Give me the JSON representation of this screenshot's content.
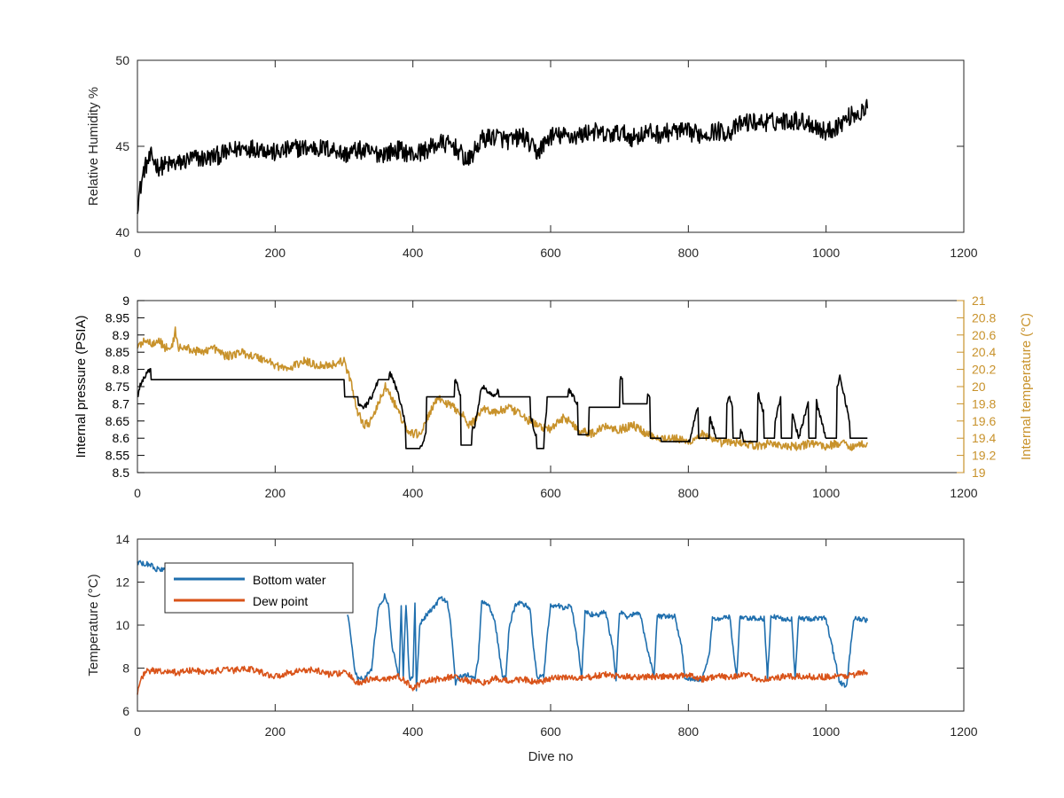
{
  "figure": {
    "xlabel": "Dive no"
  },
  "chart_data": [
    {
      "type": "line",
      "id": "humidity",
      "xlim": [
        0,
        1200
      ],
      "xticks": [
        0,
        200,
        400,
        600,
        800,
        1000,
        1200
      ],
      "ylim": [
        40,
        50
      ],
      "yticks": [
        40,
        45,
        50
      ],
      "ylabel": "Relative Humidity %",
      "grid": false,
      "series": [
        {
          "color": "#000000",
          "noise": 0.55,
          "x": [
            0,
            3,
            10,
            20,
            30,
            40,
            60,
            80,
            100,
            120,
            150,
            180,
            200,
            230,
            260,
            290,
            300,
            320,
            340,
            360,
            380,
            400,
            420,
            440,
            460,
            480,
            500,
            520,
            540,
            560,
            580,
            600,
            620,
            640,
            660,
            680,
            700,
            720,
            740,
            760,
            780,
            800,
            820,
            840,
            860,
            880,
            900,
            920,
            940,
            960,
            980,
            1000,
            1020,
            1040,
            1050,
            1060
          ],
          "values": [
            41.6,
            42.3,
            43.7,
            44.4,
            43.8,
            43.9,
            44.0,
            44.3,
            44.3,
            44.5,
            44.9,
            44.9,
            44.6,
            44.9,
            44.9,
            44.8,
            44.5,
            44.8,
            44.6,
            44.6,
            44.8,
            44.5,
            44.8,
            45.2,
            45.0,
            44.1,
            45.4,
            45.6,
            45.3,
            45.6,
            44.6,
            45.6,
            45.6,
            45.6,
            45.9,
            45.6,
            45.8,
            45.5,
            45.8,
            45.7,
            45.9,
            45.8,
            45.7,
            45.9,
            45.8,
            46.4,
            46.4,
            46.4,
            46.5,
            46.5,
            46.3,
            45.8,
            46.3,
            46.9,
            46.9,
            47.2
          ]
        }
      ]
    },
    {
      "type": "line",
      "id": "pressure",
      "xlim": [
        0,
        1200
      ],
      "xticks": [
        0,
        200,
        400,
        600,
        800,
        1000,
        1200
      ],
      "ylim": [
        8.5,
        9
      ],
      "yticks": [
        8.5,
        8.55,
        8.6,
        8.65,
        8.7,
        8.75,
        8.8,
        8.85,
        8.9,
        8.95,
        9
      ],
      "ylabel": "Internal pressure (PSIA)",
      "y2lim": [
        19,
        21
      ],
      "y2ticks": [
        19,
        19.2,
        19.4,
        19.6,
        19.8,
        20,
        20.2,
        20.4,
        20.6,
        20.8,
        21
      ],
      "y2label": "Internal temperature (°C)",
      "grid": false,
      "series": [
        {
          "axis": "left",
          "color": "#000000",
          "noise": 0.008,
          "x": [
            0,
            5,
            10,
            15,
            20,
            50,
            100,
            150,
            200,
            250,
            290,
            300,
            310,
            320,
            330,
            340,
            350,
            360,
            370,
            380,
            390,
            400,
            410,
            420,
            430,
            440,
            450,
            460,
            470,
            480,
            490,
            500,
            520,
            530,
            540,
            560,
            580,
            590,
            600,
            620,
            640,
            660,
            680,
            700,
            720,
            740,
            760,
            780,
            800,
            820,
            840,
            860,
            880,
            900,
            920,
            940,
            960,
            980,
            1000,
            1020,
            1040,
            1060
          ],
          "values": [
            8.72,
            8.76,
            8.78,
            8.79,
            8.8,
            8.8,
            8.8,
            8.8,
            8.8,
            8.8,
            8.8,
            8.79,
            8.74,
            8.7,
            8.69,
            8.72,
            8.77,
            8.8,
            8.78,
            8.72,
            8.64,
            8.6,
            8.57,
            8.62,
            8.76,
            8.79,
            8.79,
            8.78,
            8.72,
            8.6,
            8.64,
            8.75,
            8.72,
            8.78,
            8.78,
            8.74,
            8.6,
            8.6,
            8.78,
            8.76,
            8.7,
            8.77,
            8.7,
            8.78,
            8.72,
            8.74,
            8.6,
            8.64,
            8.58,
            8.74,
            8.6,
            8.72,
            8.6,
            8.74,
            8.6,
            8.77,
            8.6,
            8.75,
            8.6,
            8.78,
            8.6,
            8.6
          ],
          "oscillation": [
            [
              20,
              300,
              8.77,
              8.81
            ],
            [
              300,
              320,
              8.72,
              8.8
            ],
            [
              350,
              365,
              8.77,
              8.8
            ],
            [
              390,
              410,
              8.57,
              8.69
            ],
            [
              420,
              460,
              8.72,
              8.8
            ],
            [
              470,
              485,
              8.58,
              8.68
            ],
            [
              525,
              570,
              8.72,
              8.79
            ],
            [
              580,
              590,
              8.57,
              8.67
            ],
            [
              595,
              625,
              8.72,
              8.79
            ],
            [
              640,
              655,
              8.61,
              8.7
            ],
            [
              655,
              700,
              8.69,
              8.78
            ],
            [
              705,
              740,
              8.7,
              8.78
            ],
            [
              745,
              760,
              8.6,
              8.7
            ],
            [
              760,
              800,
              8.59,
              8.79
            ],
            [
              815,
              830,
              8.6,
              8.78
            ],
            [
              840,
              855,
              8.6,
              8.78
            ],
            [
              865,
              875,
              8.6,
              8.79
            ],
            [
              880,
              900,
              8.59,
              8.78
            ],
            [
              910,
              925,
              8.6,
              8.78
            ],
            [
              935,
              950,
              8.6,
              8.79
            ],
            [
              975,
              985,
              8.6,
              8.78
            ],
            [
              1000,
              1015,
              8.6,
              8.78
            ],
            [
              1035,
              1060,
              8.6,
              8.79
            ]
          ]
        },
        {
          "axis": "right",
          "color": "#c8922b",
          "noise": 0.05,
          "x": [
            0,
            10,
            20,
            30,
            40,
            50,
            55,
            60,
            70,
            90,
            110,
            130,
            150,
            170,
            190,
            200,
            220,
            240,
            260,
            280,
            300,
            310,
            320,
            330,
            340,
            350,
            360,
            370,
            380,
            390,
            400,
            410,
            420,
            430,
            440,
            450,
            460,
            470,
            480,
            490,
            500,
            520,
            540,
            560,
            580,
            600,
            620,
            640,
            660,
            680,
            700,
            720,
            740,
            760,
            780,
            800,
            820,
            840,
            860,
            880,
            900,
            920,
            940,
            960,
            980,
            1000,
            1020,
            1040,
            1060
          ],
          "values": [
            20.45,
            20.55,
            20.5,
            20.55,
            20.45,
            20.45,
            20.65,
            20.45,
            20.45,
            20.4,
            20.45,
            20.35,
            20.4,
            20.35,
            20.3,
            20.25,
            20.2,
            20.3,
            20.25,
            20.25,
            20.3,
            20.05,
            19.7,
            19.55,
            19.6,
            19.8,
            20.0,
            19.85,
            19.7,
            19.5,
            19.45,
            19.45,
            19.6,
            19.8,
            19.85,
            19.8,
            19.75,
            19.7,
            19.55,
            19.6,
            19.75,
            19.7,
            19.75,
            19.65,
            19.55,
            19.5,
            19.65,
            19.5,
            19.45,
            19.55,
            19.5,
            19.55,
            19.45,
            19.4,
            19.4,
            19.35,
            19.45,
            19.35,
            19.35,
            19.35,
            19.3,
            19.35,
            19.3,
            19.3,
            19.35,
            19.3,
            19.35,
            19.3,
            19.35
          ]
        }
      ]
    },
    {
      "type": "line",
      "id": "temperature",
      "xlim": [
        0,
        1200
      ],
      "xticks": [
        0,
        200,
        400,
        600,
        800,
        1000,
        1200
      ],
      "ylim": [
        6,
        14
      ],
      "yticks": [
        6,
        8,
        10,
        12,
        14
      ],
      "ylabel": "Temperature (°C)",
      "xlabel": "Dive no",
      "grid": false,
      "legend": "top-left",
      "series": [
        {
          "name": "Bottom water",
          "color": "#1f6fae",
          "noise": 0.12,
          "x": [
            0,
            20,
            25,
            40,
            60,
            100,
            200,
            300,
            305,
            310,
            315,
            320,
            330,
            340,
            345,
            350,
            360,
            365,
            370,
            380,
            383,
            386,
            390,
            395,
            397,
            400,
            403,
            405,
            410,
            420,
            430,
            440,
            450,
            455,
            460,
            462,
            465,
            470,
            480,
            490,
            495,
            500,
            510,
            520,
            530,
            535,
            540,
            550,
            560,
            570,
            575,
            580,
            590,
            595,
            600,
            610,
            620,
            630,
            640,
            645,
            650,
            660,
            670,
            680,
            690,
            695,
            700,
            710,
            720,
            730,
            740,
            750,
            755,
            760,
            770,
            780,
            790,
            795,
            800,
            820,
            830,
            835,
            840,
            850,
            860,
            870,
            875,
            880,
            900,
            910,
            915,
            920,
            940,
            950,
            955,
            960,
            1000,
            1020,
            1030,
            1040,
            1050,
            1060
          ],
          "values": [
            12.9,
            12.8,
            12.6,
            12.6,
            null,
            null,
            null,
            null,
            10.5,
            9.5,
            8.0,
            7.5,
            7.5,
            8.0,
            9.5,
            10.8,
            11.4,
            10.8,
            9.0,
            7.5,
            11.0,
            7.6,
            11.0,
            7.5,
            7.6,
            7.5,
            11.0,
            7.0,
            10.0,
            10.5,
            10.8,
            11.3,
            11.0,
            10.0,
            8.0,
            7.3,
            7.5,
            7.6,
            7.7,
            7.5,
            8.5,
            11.1,
            11.0,
            10.0,
            7.6,
            7.5,
            10.0,
            11.0,
            11.0,
            10.8,
            9.0,
            7.6,
            7.6,
            9.5,
            10.9,
            10.9,
            10.8,
            10.9,
            9.0,
            7.5,
            10.6,
            10.5,
            10.5,
            10.6,
            9.0,
            7.5,
            10.6,
            10.4,
            10.5,
            10.5,
            9.0,
            7.6,
            10.5,
            10.4,
            10.4,
            10.4,
            9.0,
            7.6,
            7.5,
            7.5,
            8.5,
            10.3,
            10.3,
            10.3,
            10.4,
            7.5,
            10.4,
            10.3,
            10.3,
            10.3,
            7.5,
            10.4,
            10.3,
            10.3,
            7.5,
            10.3,
            10.3,
            7.3,
            7.2,
            10.3,
            10.3,
            10.2
          ]
        },
        {
          "name": "Dew point",
          "color": "#d95319",
          "noise": 0.15,
          "x": [
            0,
            5,
            10,
            20,
            40,
            60,
            80,
            100,
            120,
            140,
            160,
            180,
            200,
            220,
            240,
            260,
            280,
            300,
            310,
            320,
            330,
            340,
            360,
            380,
            400,
            420,
            440,
            460,
            480,
            500,
            520,
            540,
            560,
            580,
            600,
            620,
            640,
            660,
            680,
            700,
            720,
            740,
            760,
            780,
            800,
            820,
            840,
            860,
            880,
            900,
            920,
            940,
            960,
            980,
            1000,
            1020,
            1040,
            1060
          ],
          "values": [
            6.9,
            7.4,
            7.8,
            7.9,
            7.8,
            7.8,
            7.9,
            7.8,
            7.9,
            7.9,
            8.0,
            7.8,
            7.6,
            7.8,
            7.9,
            7.9,
            7.7,
            7.8,
            7.6,
            7.3,
            7.4,
            7.5,
            7.5,
            7.6,
            7.1,
            7.4,
            7.5,
            7.6,
            7.4,
            7.3,
            7.5,
            7.4,
            7.5,
            7.3,
            7.5,
            7.6,
            7.5,
            7.6,
            7.7,
            7.6,
            7.6,
            7.6,
            7.6,
            7.6,
            7.7,
            7.5,
            7.6,
            7.6,
            7.7,
            7.5,
            7.5,
            7.6,
            7.6,
            7.6,
            7.6,
            7.6,
            7.7,
            7.8
          ]
        }
      ]
    }
  ]
}
